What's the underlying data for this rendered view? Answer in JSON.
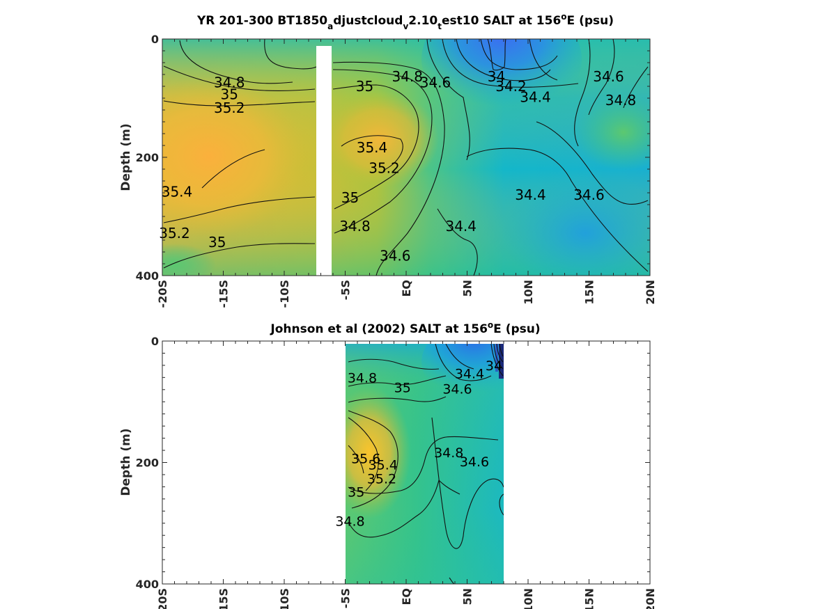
{
  "chart_data": [
    {
      "type": "heatmap",
      "title_parts": {
        "t1": "YR 201-300 BT1850",
        "s1": "a",
        "t2": "djustcloud",
        "s2": "v",
        "t3": "2.10",
        "s3": "t",
        "t4": "est10 SALT at 156",
        "sup": "o",
        "t5": "E (psu)"
      },
      "ylabel": "Depth (m)",
      "xlim_deg_lat": [
        -20,
        20
      ],
      "ylim_m": [
        0,
        400
      ],
      "y_reversed": true,
      "x_ticks": [
        "-20S",
        "-15S",
        "-10S",
        "-5S",
        "EQ",
        "5N",
        "10N",
        "15N",
        "20N"
      ],
      "y_ticks": [
        "0",
        "200",
        "400"
      ],
      "contour_levels": [
        34,
        34.2,
        34.4,
        34.6,
        34.8,
        35,
        35.2,
        35.4
      ],
      "contour_labels": [
        {
          "text": "34.8",
          "lat": -14.5,
          "depth": 75
        },
        {
          "text": "35",
          "lat": -14.5,
          "depth": 95
        },
        {
          "text": "35.2",
          "lat": -14.5,
          "depth": 118
        },
        {
          "text": "35",
          "lat": -3.4,
          "depth": 82
        },
        {
          "text": "34.8",
          "lat": 0.1,
          "depth": 65
        },
        {
          "text": "34.6",
          "lat": 2.4,
          "depth": 75
        },
        {
          "text": "34",
          "lat": 7.4,
          "depth": 65
        },
        {
          "text": "34.2",
          "lat": 8.6,
          "depth": 82
        },
        {
          "text": "34.4",
          "lat": 10.6,
          "depth": 100
        },
        {
          "text": "34.6",
          "lat": 16.6,
          "depth": 65
        },
        {
          "text": "34.8",
          "lat": 17.6,
          "depth": 105
        },
        {
          "text": "35.4",
          "lat": -2.8,
          "depth": 185
        },
        {
          "text": "35.2",
          "lat": -1.8,
          "depth": 220
        },
        {
          "text": "35.4",
          "lat": -18.8,
          "depth": 260
        },
        {
          "text": "35",
          "lat": -4.6,
          "depth": 270
        },
        {
          "text": "34.8",
          "lat": -4.2,
          "depth": 318
        },
        {
          "text": "35.2",
          "lat": -19.0,
          "depth": 330
        },
        {
          "text": "35",
          "lat": -15.5,
          "depth": 345
        },
        {
          "text": "34.6",
          "lat": -0.9,
          "depth": 368
        },
        {
          "text": "34.4",
          "lat": 4.5,
          "depth": 318
        },
        {
          "text": "34.4",
          "lat": 10.2,
          "depth": 265
        },
        {
          "text": "34.6",
          "lat": 15.0,
          "depth": 265
        }
      ],
      "colors": {
        "fresh": "#3a6cf0",
        "mid": "#1fb8c8",
        "saline": "#f5b33a"
      }
    },
    {
      "type": "heatmap",
      "title_parts": {
        "t1": "Johnson et al (2002) SALT at 156",
        "sup": "o",
        "t2": "E (psu)"
      },
      "ylabel": "Depth (m)",
      "xlim_deg_lat": [
        -20,
        20
      ],
      "ylim_m": [
        0,
        400
      ],
      "y_reversed": true,
      "data_lat_range": [
        -5,
        8
      ],
      "x_ticks": [
        "-20S",
        "-15S",
        "-10S",
        "-5S",
        "EQ",
        "5N",
        "10N",
        "15N",
        "20N"
      ],
      "y_ticks": [
        "0",
        "200",
        "400"
      ],
      "contour_labels": [
        {
          "text": "34.8",
          "lat": -3.6,
          "depth": 62
        },
        {
          "text": "35",
          "lat": -0.3,
          "depth": 78
        },
        {
          "text": "34.4",
          "lat": 5.2,
          "depth": 55
        },
        {
          "text": "34",
          "lat": 7.2,
          "depth": 42
        },
        {
          "text": "34.6",
          "lat": 4.2,
          "depth": 80
        },
        {
          "text": "35.6",
          "lat": -3.3,
          "depth": 195
        },
        {
          "text": "35.4",
          "lat": -1.9,
          "depth": 205
        },
        {
          "text": "35.2",
          "lat": -2.0,
          "depth": 228
        },
        {
          "text": "35",
          "lat": -4.1,
          "depth": 250
        },
        {
          "text": "34.8",
          "lat": 3.5,
          "depth": 185
        },
        {
          "text": "34.6",
          "lat": 5.6,
          "depth": 200
        },
        {
          "text": "34.8",
          "lat": -4.6,
          "depth": 298
        }
      ],
      "colors": {
        "fresh": "#2a5cd8",
        "mid": "#1fb8c8",
        "saline": "#f7c531"
      }
    }
  ]
}
